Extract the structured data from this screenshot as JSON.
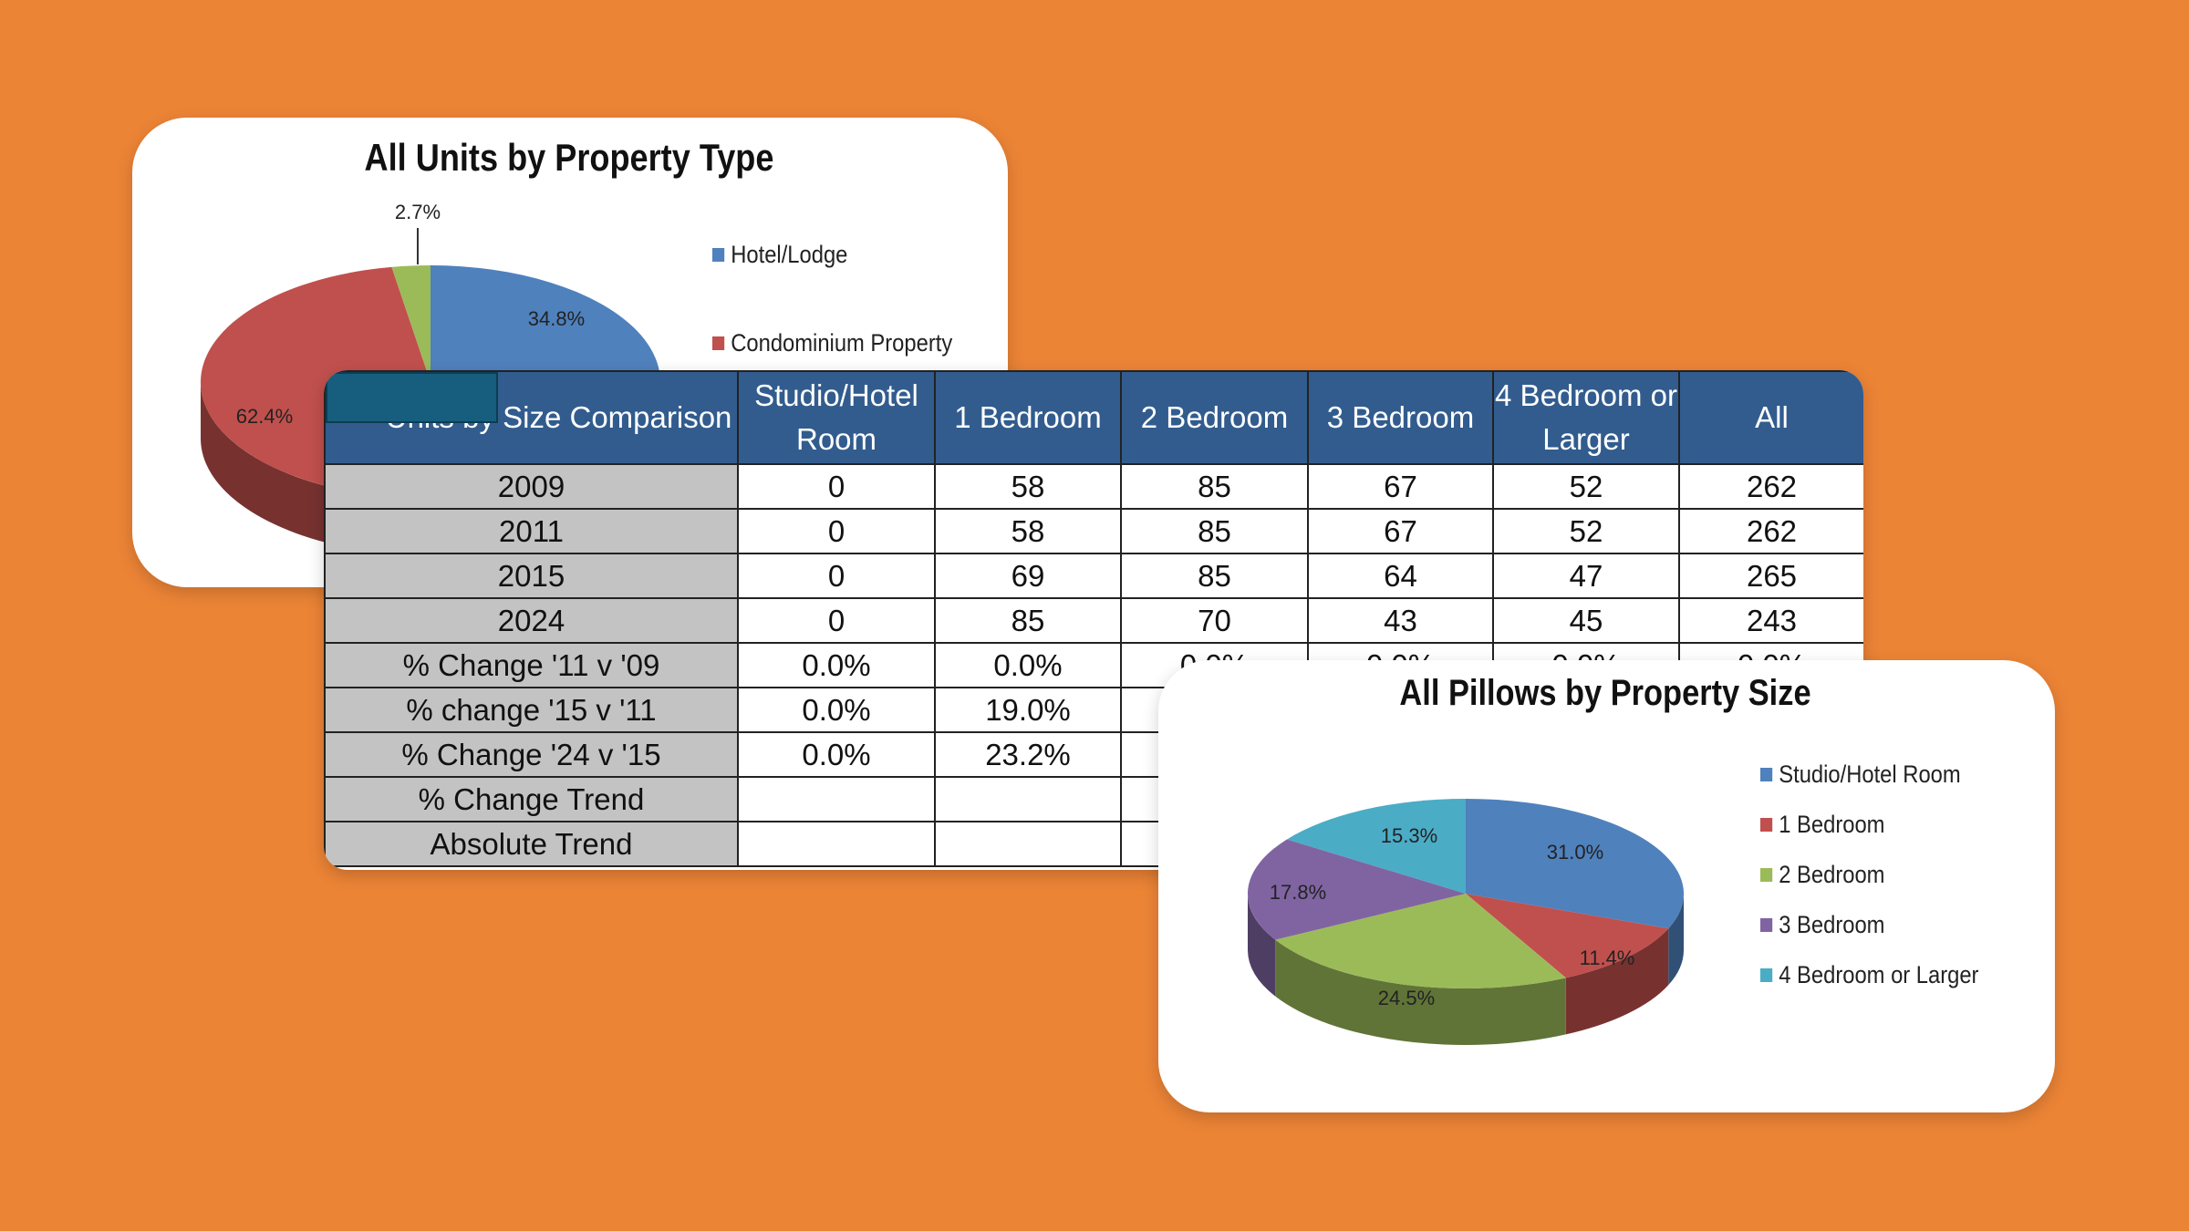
{
  "colors": {
    "background": "#EC8436",
    "header": "#325C8E",
    "label_cell": "#C3C3C3",
    "redaction": "#175E7E"
  },
  "chart_units": {
    "type": "pie",
    "title": "All Units by Property Type",
    "slices": [
      {
        "label": "Hotel/Lodge",
        "value": 34.8,
        "display": "34.8%",
        "color": "#4F81BD"
      },
      {
        "label": "Condominium Property",
        "value": 62.4,
        "display": "62.4%",
        "color": "#C0504D"
      },
      {
        "label": "",
        "value": 2.7,
        "display": "2.7%",
        "color": "#9BBB59"
      }
    ],
    "legend": [
      "Hotel/Lodge",
      "Condominium Property"
    ]
  },
  "chart_pillows": {
    "type": "pie",
    "title": "All Pillows by Property Size",
    "slices": [
      {
        "label": "Studio/Hotel Room",
        "value": 31.0,
        "display": "31.0%",
        "color": "#4F81BD"
      },
      {
        "label": "1 Bedroom",
        "value": 11.4,
        "display": "11.4%",
        "color": "#C0504D"
      },
      {
        "label": "2 Bedroom",
        "value": 24.5,
        "display": "24.5%",
        "color": "#9BBB59"
      },
      {
        "label": "3 Bedroom",
        "value": 17.8,
        "display": "17.8%",
        "color": "#8064A2"
      },
      {
        "label": "4 Bedroom or Larger",
        "value": 15.3,
        "display": "15.3%",
        "color": "#4BACC6"
      }
    ]
  },
  "table": {
    "headers": [
      "- Units by Size Comparison",
      "Studio/Hotel Room",
      "1 Bedroom",
      "2 Bedroom",
      "3 Bedroom",
      "4 Bedroom or Larger",
      "All"
    ],
    "rows": [
      [
        "2009",
        "0",
        "58",
        "85",
        "67",
        "52",
        "262"
      ],
      [
        "2011",
        "0",
        "58",
        "85",
        "67",
        "52",
        "262"
      ],
      [
        "2015",
        "0",
        "69",
        "85",
        "64",
        "47",
        "265"
      ],
      [
        "2024",
        "0",
        "85",
        "70",
        "43",
        "45",
        "243"
      ],
      [
        "% Change '11 v '09",
        "0.0%",
        "0.0%",
        "0.0%",
        "0.0%",
        "0.0%",
        "0.0%"
      ],
      [
        "% change '15 v '11",
        "0.0%",
        "19.0%",
        "",
        "",
        "",
        ""
      ],
      [
        "% Change '24 v '15",
        "0.0%",
        "23.2%",
        "",
        "",
        "",
        ""
      ],
      [
        "% Change Trend",
        "",
        "",
        "",
        "",
        "",
        ""
      ],
      [
        "Absolute Trend",
        "",
        "",
        "",
        "",
        "",
        ""
      ]
    ]
  }
}
